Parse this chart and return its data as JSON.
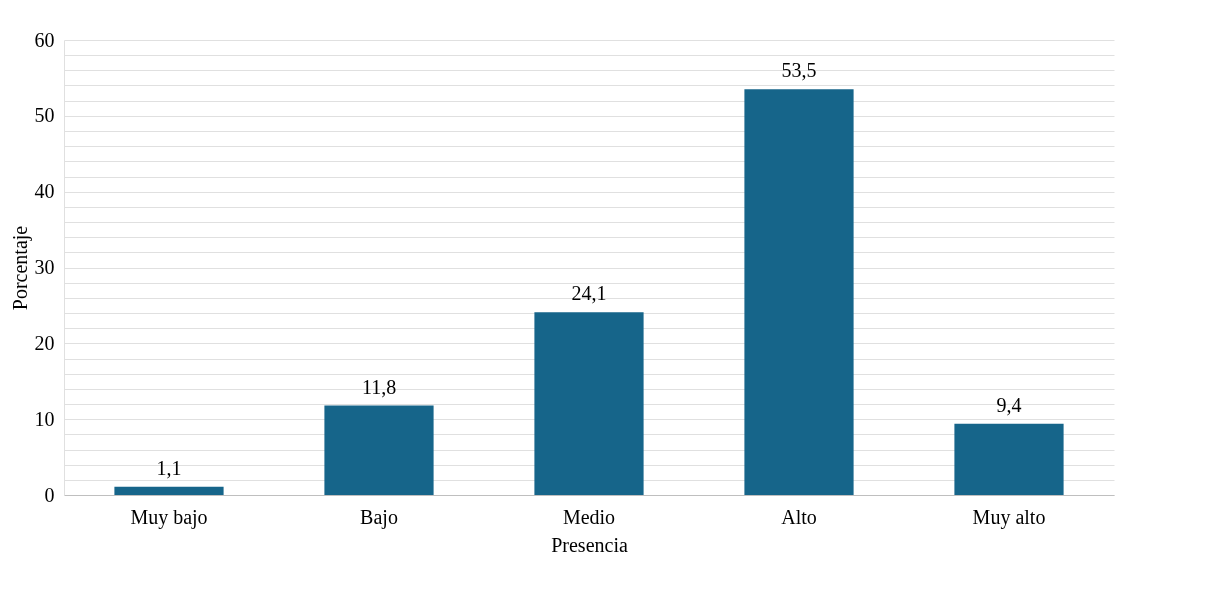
{
  "chart_data": {
    "type": "bar",
    "xlabel": "Presencia",
    "ylabel": "Porcentaje",
    "categories": [
      "Muy bajo",
      "Bajo",
      "Medio",
      "Alto",
      "Muy alto"
    ],
    "series": [
      {
        "color": "#16658a",
        "values": [
          1.1,
          11.8,
          24.1,
          53.5,
          9.4
        ],
        "value_labels": [
          "1,1",
          "11,8",
          "24,1",
          "53,5",
          "9,4"
        ]
      }
    ],
    "ylim": [
      0,
      60
    ],
    "yticks": [
      0,
      {
        "value": 2,
        "label": null
      },
      {
        "value": 4,
        "label": null
      },
      {
        "value": 6,
        "label": null
      },
      {
        "value": 8,
        "label": null
      },
      10,
      {
        "value": 12,
        "label": null
      },
      {
        "value": 14,
        "label": null
      },
      {
        "value": 16,
        "label": null
      },
      {
        "value": 18,
        "label": null
      },
      20,
      {
        "value": 22,
        "label": null
      },
      {
        "value": 24,
        "label": null
      },
      {
        "value": 26,
        "label": null
      },
      {
        "value": 28,
        "label": null
      },
      30,
      {
        "value": 32,
        "label": null
      },
      {
        "value": 34,
        "label": null
      },
      {
        "value": 36,
        "label": null
      },
      {
        "value": 38,
        "label": null
      },
      40,
      {
        "value": 42,
        "label": null
      },
      {
        "value": 44,
        "label": null
      },
      {
        "value": 46,
        "label": null
      },
      {
        "value": 48,
        "label": null
      },
      50,
      {
        "value": 52,
        "label": null
      },
      {
        "value": 54,
        "label": null
      },
      {
        "value": 56,
        "label": null
      },
      {
        "value": 58,
        "label": null
      },
      60
    ],
    "grid": "y",
    "legend": false
  }
}
